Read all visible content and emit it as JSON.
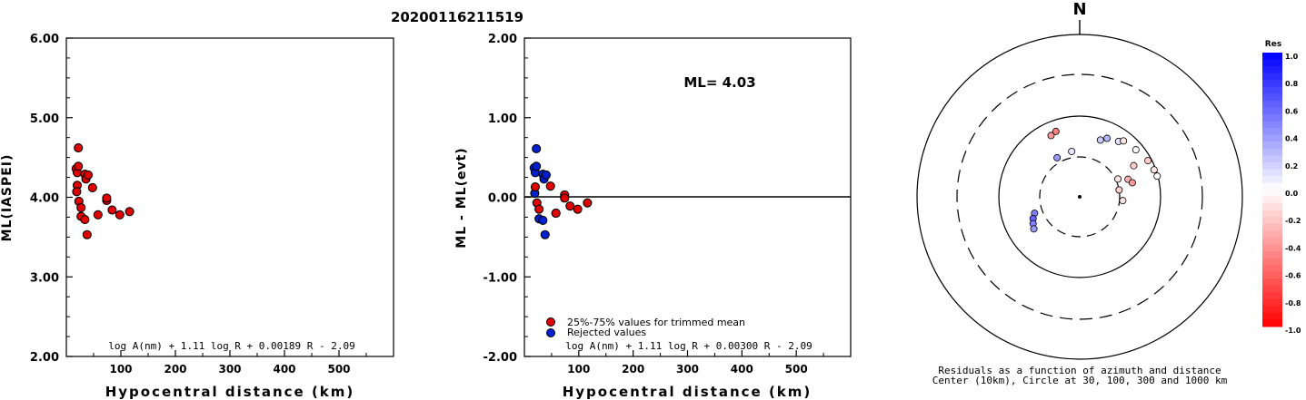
{
  "title": "20200116211519",
  "chart_data": [
    {
      "type": "scatter",
      "ylabel": "ML(IASPEI)",
      "xlabel": "Hypocentral distance (km)",
      "xlim": [
        0,
        600
      ],
      "ylim": [
        2,
        6
      ],
      "xticks": [
        "100",
        "200",
        "300",
        "400",
        "500"
      ],
      "yticks": [
        "2.00",
        "3.00",
        "4.00",
        "5.00",
        "6.00"
      ],
      "formula": "log A(nm) + 1.11 log R + 0.00189 R - 2.09",
      "color": "#e00000",
      "points": [
        [
          18,
          4.36
        ],
        [
          20,
          4.31
        ],
        [
          22,
          4.39
        ],
        [
          22,
          4.62
        ],
        [
          20,
          4.15
        ],
        [
          19,
          4.07
        ],
        [
          23,
          3.95
        ],
        [
          27,
          3.87
        ],
        [
          27,
          3.76
        ],
        [
          34,
          3.72
        ],
        [
          34,
          4.29
        ],
        [
          36,
          4.23
        ],
        [
          40,
          4.28
        ],
        [
          48,
          4.12
        ],
        [
          38,
          3.53
        ],
        [
          58,
          3.78
        ],
        [
          74,
          3.96
        ],
        [
          74,
          3.99
        ],
        [
          84,
          3.84
        ],
        [
          98,
          3.78
        ],
        [
          116,
          3.82
        ]
      ]
    },
    {
      "type": "scatter",
      "ylabel": "ML - ML(evt)",
      "xlabel": "Hypocentral distance (km)",
      "xlim": [
        0,
        600
      ],
      "ylim": [
        -2,
        2
      ],
      "xticks": [
        "100",
        "200",
        "300",
        "400",
        "500"
      ],
      "yticks": [
        "-2.00",
        "-1.00",
        "0.00",
        "1.00",
        "2.00"
      ],
      "ml_text": "ML= 4.03",
      "formula": "log A(nm) + 1.11 log R + 0.00300 R - 2.09",
      "legend": [
        {
          "label": "25%-75% values for trimmed mean",
          "color": "#e00000"
        },
        {
          "label": "Rejected values",
          "color": "#0020d0"
        }
      ],
      "points_used": [
        [
          20,
          0.13
        ],
        [
          23,
          -0.07
        ],
        [
          27,
          -0.15
        ],
        [
          48,
          0.14
        ],
        [
          58,
          -0.2
        ],
        [
          74,
          0.03
        ],
        [
          74,
          -0.01
        ],
        [
          84,
          -0.11
        ],
        [
          98,
          -0.15
        ],
        [
          116,
          -0.07
        ]
      ],
      "points_rejected": [
        [
          18,
          0.37
        ],
        [
          20,
          0.31
        ],
        [
          22,
          0.39
        ],
        [
          22,
          0.61
        ],
        [
          19,
          0.05
        ],
        [
          34,
          0.29
        ],
        [
          36,
          0.23
        ],
        [
          40,
          0.28
        ],
        [
          27,
          -0.27
        ],
        [
          34,
          -0.29
        ],
        [
          38,
          -0.47
        ],
        [
          58,
          -0.2
        ]
      ]
    },
    {
      "type": "scatter",
      "north_label": "N",
      "caption_line1": "Residuals as a function of azimuth and distance",
      "caption_line2": "Center (10km), Circle at 30, 100, 300 and 1000 km",
      "colorbar_title": "Res",
      "colorbar_ticks": [
        "1.0",
        "0.8",
        "0.6",
        "0.4",
        "0.2",
        "0.0",
        "-0.2",
        "-0.4",
        "-0.6",
        "-0.8",
        "-1.0"
      ],
      "stations": [
        {
          "azimuth_deg": 330,
          "distance_km": 35,
          "res": 0.4
        },
        {
          "azimuth_deg": 350,
          "distance_km": 36,
          "res": 0.1
        },
        {
          "azimuth_deg": 250,
          "distance_km": 38,
          "res": 0.5
        },
        {
          "azimuth_deg": 245,
          "distance_km": 42,
          "res": 0.6
        },
        {
          "azimuth_deg": 240,
          "distance_km": 45,
          "res": 0.5
        },
        {
          "azimuth_deg": 235,
          "distance_km": 48,
          "res": 0.4
        },
        {
          "azimuth_deg": 65,
          "distance_km": 32,
          "res": -0.1
        },
        {
          "azimuth_deg": 80,
          "distance_km": 30,
          "res": -0.2
        },
        {
          "azimuth_deg": 95,
          "distance_km": 33,
          "res": -0.1
        },
        {
          "azimuth_deg": 70,
          "distance_km": 42,
          "res": -0.3
        },
        {
          "azimuth_deg": 75,
          "distance_km": 46,
          "res": -0.4
        },
        {
          "azimuth_deg": 60,
          "distance_km": 58,
          "res": -0.2
        },
        {
          "azimuth_deg": 20,
          "distance_km": 55,
          "res": 0.2
        },
        {
          "azimuth_deg": 25,
          "distance_km": 62,
          "res": 0.3
        },
        {
          "azimuth_deg": 35,
          "distance_km": 68,
          "res": 0.1
        },
        {
          "azimuth_deg": 38,
          "distance_km": 75,
          "res": -0.1
        },
        {
          "azimuth_deg": 50,
          "distance_km": 80,
          "res": 0.0
        },
        {
          "azimuth_deg": 62,
          "distance_km": 90,
          "res": -0.2
        },
        {
          "azimuth_deg": 70,
          "distance_km": 95,
          "res": -0.1
        },
        {
          "azimuth_deg": 75,
          "distance_km": 98,
          "res": 0.0
        },
        {
          "azimuth_deg": 335,
          "distance_km": 68,
          "res": -0.4
        },
        {
          "azimuth_deg": 340,
          "distance_km": 72,
          "res": -0.5
        }
      ]
    }
  ]
}
